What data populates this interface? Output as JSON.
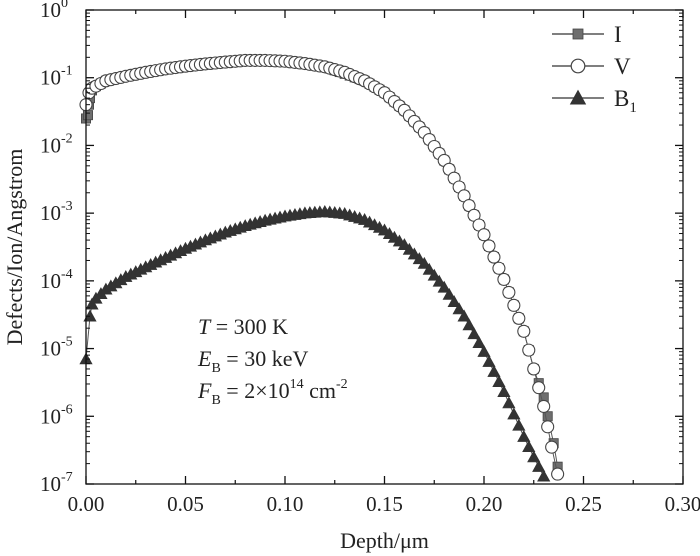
{
  "chart_data": {
    "type": "scatter",
    "xlabel": "Depth/μm",
    "ylabel": "Defects/Ion/Angstrom",
    "xlim": [
      0,
      0.3
    ],
    "ylim_exp": [
      -7,
      0
    ],
    "y_scale": "log",
    "x_ticks": [
      "0.00",
      "0.05",
      "0.10",
      "0.15",
      "0.20",
      "0.25",
      "0.30"
    ],
    "y_ticks": [
      {
        "base": "10",
        "exp": "0"
      },
      {
        "base": "10",
        "exp": "-1"
      },
      {
        "base": "10",
        "exp": "-2"
      },
      {
        "base": "10",
        "exp": "-3"
      },
      {
        "base": "10",
        "exp": "-4"
      },
      {
        "base": "10",
        "exp": "-5"
      },
      {
        "base": "10",
        "exp": "-6"
      },
      {
        "base": "10",
        "exp": "-7"
      }
    ],
    "legend_position": "top-right",
    "series": [
      {
        "name": "I",
        "marker": "square",
        "color": "#6e6e6e",
        "x": [
          0.0,
          0.001,
          0.0015,
          0.002,
          0.003,
          0.005,
          0.01,
          0.02,
          0.04,
          0.06,
          0.08,
          0.1,
          0.12,
          0.14,
          0.15,
          0.16,
          0.17,
          0.18,
          0.19,
          0.2,
          0.21,
          0.22,
          0.225,
          0.23,
          0.232,
          0.235,
          0.237
        ],
        "y": [
          0.025,
          0.028,
          0.04,
          0.05,
          0.065,
          0.075,
          0.09,
          0.105,
          0.135,
          0.16,
          0.18,
          0.175,
          0.145,
          0.09,
          0.06,
          0.033,
          0.0155,
          0.006,
          0.0018,
          0.00048,
          0.000105,
          1.8e-05,
          5e-06,
          1.9e-06,
          1e-06,
          4e-07,
          1.8e-07
        ]
      },
      {
        "name": "V",
        "marker": "circle",
        "color": "#ffffff",
        "x": [
          0.0,
          0.0015,
          0.003,
          0.005,
          0.01,
          0.02,
          0.03,
          0.04,
          0.05,
          0.06,
          0.07,
          0.08,
          0.09,
          0.1,
          0.11,
          0.12,
          0.13,
          0.14,
          0.15,
          0.16,
          0.17,
          0.18,
          0.19,
          0.2,
          0.21,
          0.22,
          0.225,
          0.23,
          0.234,
          0.237
        ],
        "y": [
          0.04,
          0.06,
          0.07,
          0.075,
          0.09,
          0.105,
          0.12,
          0.135,
          0.148,
          0.16,
          0.17,
          0.18,
          0.18,
          0.175,
          0.162,
          0.145,
          0.12,
          0.09,
          0.06,
          0.033,
          0.0155,
          0.006,
          0.0018,
          0.00048,
          0.000105,
          1.8e-05,
          5e-06,
          1.4e-06,
          3.5e-07,
          1.4e-07
        ]
      },
      {
        "name": "B",
        "name_sub": "1",
        "marker": "triangle",
        "color": "#333333",
        "x": [
          0.0,
          0.002,
          0.003,
          0.005,
          0.01,
          0.02,
          0.03,
          0.04,
          0.05,
          0.06,
          0.07,
          0.08,
          0.09,
          0.1,
          0.11,
          0.12,
          0.13,
          0.14,
          0.15,
          0.16,
          0.17,
          0.18,
          0.19,
          0.2,
          0.21,
          0.22,
          0.225,
          0.23
        ],
        "y": [
          7e-06,
          3e-05,
          4.5e-05,
          5.5e-05,
          7.5e-05,
          0.000115,
          0.00016,
          0.00022,
          0.0003,
          0.0004,
          0.00052,
          0.00065,
          0.00078,
          0.0009,
          0.001,
          0.00105,
          0.00098,
          0.0008,
          0.00056,
          0.00034,
          0.00018,
          8e-05,
          3e-05,
          9e-06,
          2.3e-06,
          5e-07,
          2.5e-07,
          1.3e-07
        ]
      }
    ],
    "annotations": [
      {
        "var": "T",
        "sub": "",
        "text": " = 300 K",
        "sup": "",
        "tail": ""
      },
      {
        "var": "E",
        "sub": "B",
        "text": " = 30 keV",
        "sup": "",
        "tail": ""
      },
      {
        "var": "F",
        "sub": "B",
        "text": " = 2×10",
        "sup": "14",
        "tail": " cm-2"
      }
    ]
  }
}
